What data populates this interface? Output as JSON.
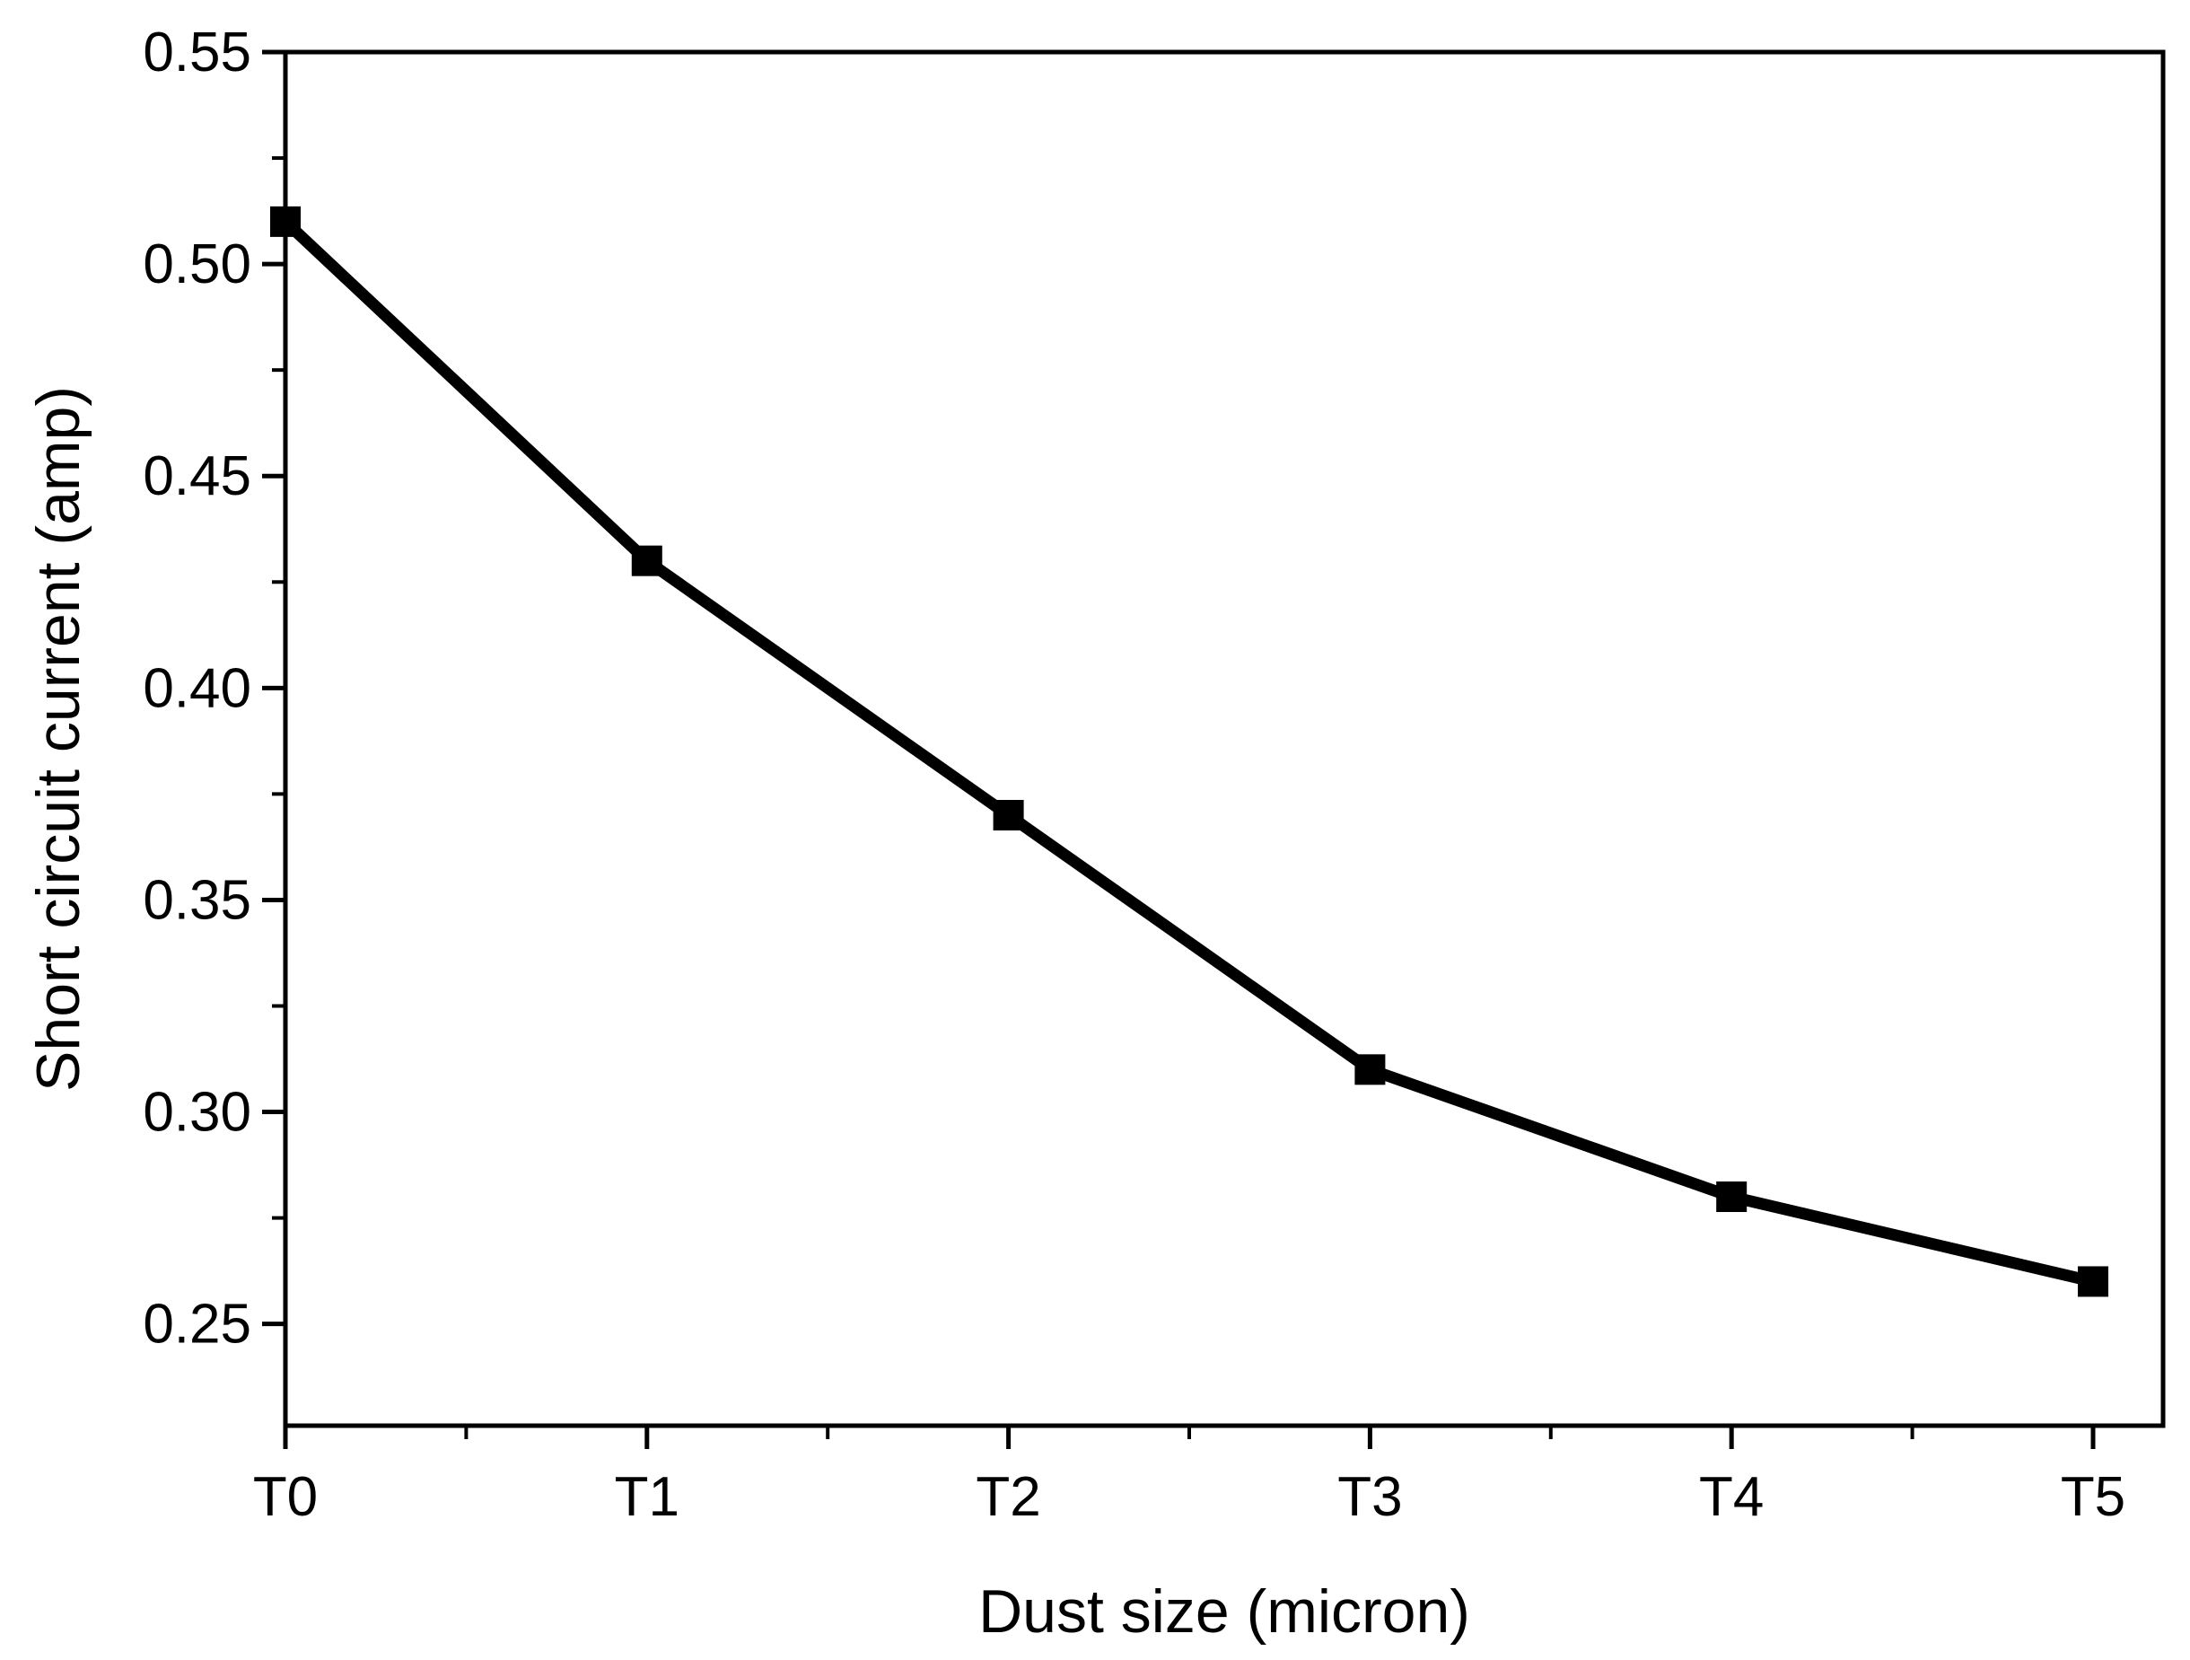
{
  "chart_data": {
    "type": "line",
    "title": "",
    "xlabel": "Dust size (micron)",
    "ylabel": "Short circuit current (amp)",
    "categories": [
      "T0",
      "T1",
      "T2",
      "T3",
      "T4",
      "T5"
    ],
    "series": [
      {
        "values": [
          0.51,
          0.43,
          0.37,
          0.31,
          0.28,
          0.26
        ],
        "color": "#000000",
        "marker": "square"
      }
    ],
    "ylim": [
      0.226,
      0.55
    ],
    "yticks": [
      0.25,
      0.3,
      0.35,
      0.4,
      0.45,
      0.5,
      0.55
    ],
    "ytick_labels": [
      "0.25",
      "0.30",
      "0.35",
      "0.40",
      "0.45",
      "0.50",
      "0.55"
    ],
    "grid": false,
    "legend": "none"
  }
}
